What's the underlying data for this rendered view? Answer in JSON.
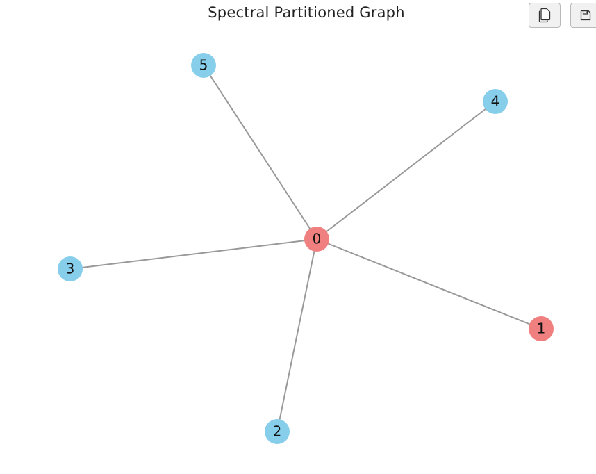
{
  "title": "Spectral Partitioned Graph",
  "toolbar": {
    "copy_icon": "copy-icon",
    "save_icon": "save-icon"
  },
  "colors": {
    "partition_a": "#f08080",
    "partition_b": "#87ceeb",
    "edge": "#999999"
  },
  "graph": {
    "nodes": [
      {
        "id": "0",
        "label": "0",
        "partition": "a"
      },
      {
        "id": "1",
        "label": "1",
        "partition": "a"
      },
      {
        "id": "2",
        "label": "2",
        "partition": "b"
      },
      {
        "id": "3",
        "label": "3",
        "partition": "b"
      },
      {
        "id": "4",
        "label": "4",
        "partition": "b"
      },
      {
        "id": "5",
        "label": "5",
        "partition": "b"
      }
    ],
    "edges": [
      [
        "0",
        "1"
      ],
      [
        "0",
        "2"
      ],
      [
        "0",
        "3"
      ],
      [
        "0",
        "4"
      ],
      [
        "0",
        "5"
      ]
    ]
  }
}
